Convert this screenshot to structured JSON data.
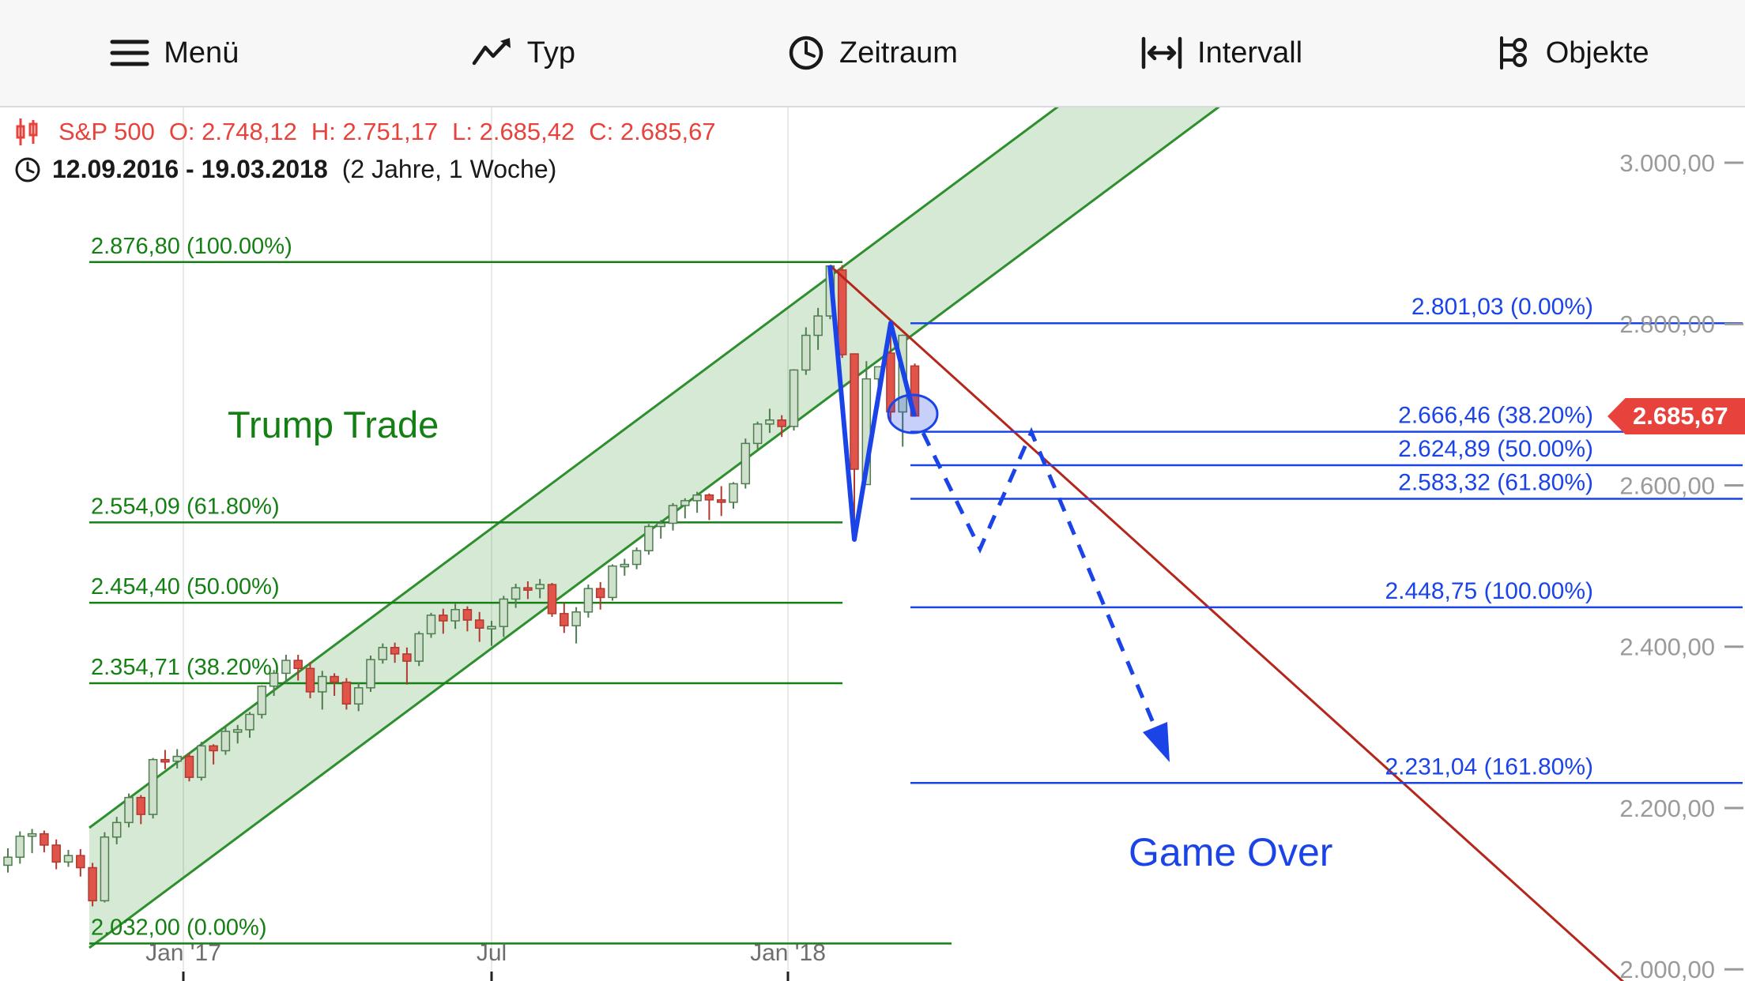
{
  "toolbar": {
    "items": [
      {
        "label": "Menü",
        "icon": "menu-icon"
      },
      {
        "label": "Typ",
        "icon": "chart-type-icon"
      },
      {
        "label": "Zeitraum",
        "icon": "clock-icon"
      },
      {
        "label": "Intervall",
        "icon": "interval-icon"
      },
      {
        "label": "Objekte",
        "icon": "objects-icon"
      }
    ]
  },
  "header": {
    "symbol": "S&P 500",
    "ohlc": [
      "O: 2.748,12",
      "H: 2.751,17",
      "L: 2.685,42",
      "C: 2.685,67"
    ],
    "date_range": "12.09.2016 - 19.03.2018",
    "duration": "(2 Jahre, 1 Woche)"
  },
  "annotations": {
    "trump_trade": "Trump Trade",
    "game_over": "Game Over"
  },
  "price_badge": "2.685,67",
  "axes": {
    "y_labels": [
      "3.000,00",
      "2.800,00",
      "2.600,00",
      "2.400,00",
      "2.200,00",
      "2.000,00"
    ],
    "y_values": [
      3000,
      2800,
      2600,
      2400,
      2200,
      2000
    ],
    "x_labels": [
      "Jan '17",
      "Jul",
      "Jan '18"
    ]
  },
  "colors": {
    "fib_green": "#148014",
    "fib_blue": "#1b44e8",
    "channel_line": "#2f8f2f",
    "downtrend": "#b5271d",
    "badge": "#e8423d",
    "candle_up_fill": "#cfe0cc",
    "candle_up_stroke": "#4e7d4e",
    "candle_down_fill": "#e0544a",
    "candle_down_stroke": "#b03a30",
    "axis_gray": "#9a9a9a"
  },
  "chart_data": {
    "type": "candlestick",
    "symbol": "S&P 500",
    "interval": "1 Woche",
    "period": "12.09.2016 - 19.03.2018 (2 Jahre, 1 Woche)",
    "last_ohlc": {
      "open": 2748.12,
      "high": 2751.17,
      "low": 2685.42,
      "close": 2685.67
    },
    "y_axis": {
      "ticks": [
        3000,
        2800,
        2600,
        2400,
        2200,
        2000
      ],
      "range": [
        2000,
        3050
      ]
    },
    "x_axis": {
      "ticks": [
        "Jan '17",
        "Jul",
        "Jan '18"
      ]
    },
    "fib_up": {
      "color": "green",
      "levels": [
        {
          "price": 2876.8,
          "pct": "100.00%",
          "label": "2.876,80 (100.00%)"
        },
        {
          "price": 2554.09,
          "pct": "61.80%",
          "label": "2.554,09 (61.80%)"
        },
        {
          "price": 2454.4,
          "pct": "50.00%",
          "label": "2.454,40 (50.00%)"
        },
        {
          "price": 2354.71,
          "pct": "38.20%",
          "label": "2.354,71 (38.20%)"
        },
        {
          "price": 2032.0,
          "pct": "0.00%",
          "label": "2.032,00 (0.00%)"
        }
      ]
    },
    "fib_down": {
      "color": "blue",
      "levels": [
        {
          "price": 2801.03,
          "pct": "0.00%",
          "label": "2.801,03 (0.00%)"
        },
        {
          "price": 2666.46,
          "pct": "38.20%",
          "label": "2.666,46 (38.20%)"
        },
        {
          "price": 2624.89,
          "pct": "50.00%",
          "label": "2.624,89 (50.00%)"
        },
        {
          "price": 2583.32,
          "pct": "61.80%",
          "label": "2.583,32 (61.80%)"
        },
        {
          "price": 2448.75,
          "pct": "100.00%",
          "label": "2.448,75 (100.00%)"
        },
        {
          "price": 2231.04,
          "pct": "161.80%",
          "label": "2.231,04 (161.80%)"
        }
      ]
    },
    "overlays": {
      "trend_channel": {
        "color": "green",
        "filled": true,
        "direction": "up"
      },
      "downtrend_line": {
        "color": "dark-red",
        "from_price": 2873,
        "to_price": 2000
      },
      "zigzag": {
        "color": "blue",
        "prices": [
          2876,
          2533,
          2801,
          2686
        ]
      },
      "projection_dashed": {
        "color": "blue",
        "style": "dashed-arrow",
        "target_price": 2231
      },
      "highlight_ellipse": {
        "color": "blue",
        "at_price": 2686
      }
    },
    "candles_ohlc": [
      [
        2129,
        2150,
        2120,
        2139
      ],
      [
        2139,
        2171,
        2131,
        2165
      ],
      [
        2165,
        2174,
        2144,
        2168
      ],
      [
        2168,
        2172,
        2145,
        2154
      ],
      [
        2154,
        2161,
        2124,
        2133
      ],
      [
        2133,
        2148,
        2127,
        2141
      ],
      [
        2141,
        2149,
        2115,
        2126
      ],
      [
        2126,
        2132,
        2078,
        2085
      ],
      [
        2085,
        2170,
        2083,
        2164
      ],
      [
        2164,
        2189,
        2155,
        2182
      ],
      [
        2182,
        2218,
        2176,
        2213
      ],
      [
        2213,
        2216,
        2180,
        2192
      ],
      [
        2192,
        2262,
        2187,
        2260
      ],
      [
        2260,
        2272,
        2248,
        2258
      ],
      [
        2258,
        2273,
        2249,
        2264
      ],
      [
        2264,
        2268,
        2233,
        2238
      ],
      [
        2238,
        2282,
        2234,
        2277
      ],
      [
        2277,
        2279,
        2254,
        2271
      ],
      [
        2271,
        2300,
        2266,
        2295
      ],
      [
        2295,
        2303,
        2280,
        2297
      ],
      [
        2297,
        2319,
        2287,
        2316
      ],
      [
        2316,
        2352,
        2311,
        2351
      ],
      [
        2351,
        2371,
        2339,
        2367
      ],
      [
        2367,
        2390,
        2354,
        2383
      ],
      [
        2383,
        2390,
        2358,
        2373
      ],
      [
        2373,
        2381,
        2336,
        2344
      ],
      [
        2344,
        2370,
        2322,
        2363
      ],
      [
        2363,
        2367,
        2339,
        2356
      ],
      [
        2356,
        2361,
        2322,
        2329
      ],
      [
        2329,
        2355,
        2320,
        2349
      ],
      [
        2349,
        2389,
        2344,
        2384
      ],
      [
        2384,
        2404,
        2379,
        2399
      ],
      [
        2399,
        2405,
        2380,
        2391
      ],
      [
        2391,
        2399,
        2353,
        2382
      ],
      [
        2382,
        2419,
        2376,
        2416
      ],
      [
        2416,
        2442,
        2411,
        2439
      ],
      [
        2439,
        2447,
        2416,
        2432
      ],
      [
        2432,
        2453,
        2422,
        2446
      ],
      [
        2446,
        2450,
        2419,
        2433
      ],
      [
        2433,
        2443,
        2406,
        2423
      ],
      [
        2423,
        2432,
        2401,
        2425
      ],
      [
        2425,
        2463,
        2412,
        2459
      ],
      [
        2459,
        2478,
        2448,
        2473
      ],
      [
        2473,
        2481,
        2459,
        2472
      ],
      [
        2472,
        2484,
        2460,
        2477
      ],
      [
        2477,
        2479,
        2437,
        2441
      ],
      [
        2441,
        2454,
        2417,
        2426
      ],
      [
        2426,
        2449,
        2404,
        2443
      ],
      [
        2443,
        2477,
        2436,
        2472
      ],
      [
        2472,
        2480,
        2446,
        2461
      ],
      [
        2461,
        2502,
        2457,
        2500
      ],
      [
        2500,
        2509,
        2488,
        2502
      ],
      [
        2502,
        2523,
        2496,
        2519
      ],
      [
        2519,
        2552,
        2514,
        2549
      ],
      [
        2549,
        2557,
        2534,
        2553
      ],
      [
        2553,
        2578,
        2544,
        2575
      ],
      [
        2575,
        2584,
        2559,
        2581
      ],
      [
        2581,
        2592,
        2566,
        2588
      ],
      [
        2588,
        2590,
        2557,
        2582
      ],
      [
        2582,
        2599,
        2562,
        2579
      ],
      [
        2579,
        2604,
        2571,
        2602
      ],
      [
        2602,
        2658,
        2596,
        2652
      ],
      [
        2652,
        2679,
        2645,
        2676
      ],
      [
        2676,
        2695,
        2665,
        2681
      ],
      [
        2681,
        2687,
        2660,
        2673
      ],
      [
        2673,
        2744,
        2668,
        2743
      ],
      [
        2743,
        2796,
        2737,
        2786
      ],
      [
        2786,
        2820,
        2768,
        2810
      ],
      [
        2810,
        2873,
        2806,
        2872
      ],
      [
        2867,
        2873,
        2758,
        2762
      ],
      [
        2763,
        2763,
        2533,
        2620
      ],
      [
        2601,
        2754,
        2601,
        2732
      ],
      [
        2732,
        2747,
        2697,
        2747
      ],
      [
        2764,
        2801,
        2677,
        2691
      ],
      [
        2691,
        2787,
        2648,
        2786
      ],
      [
        2748,
        2751,
        2685,
        2686
      ]
    ]
  }
}
